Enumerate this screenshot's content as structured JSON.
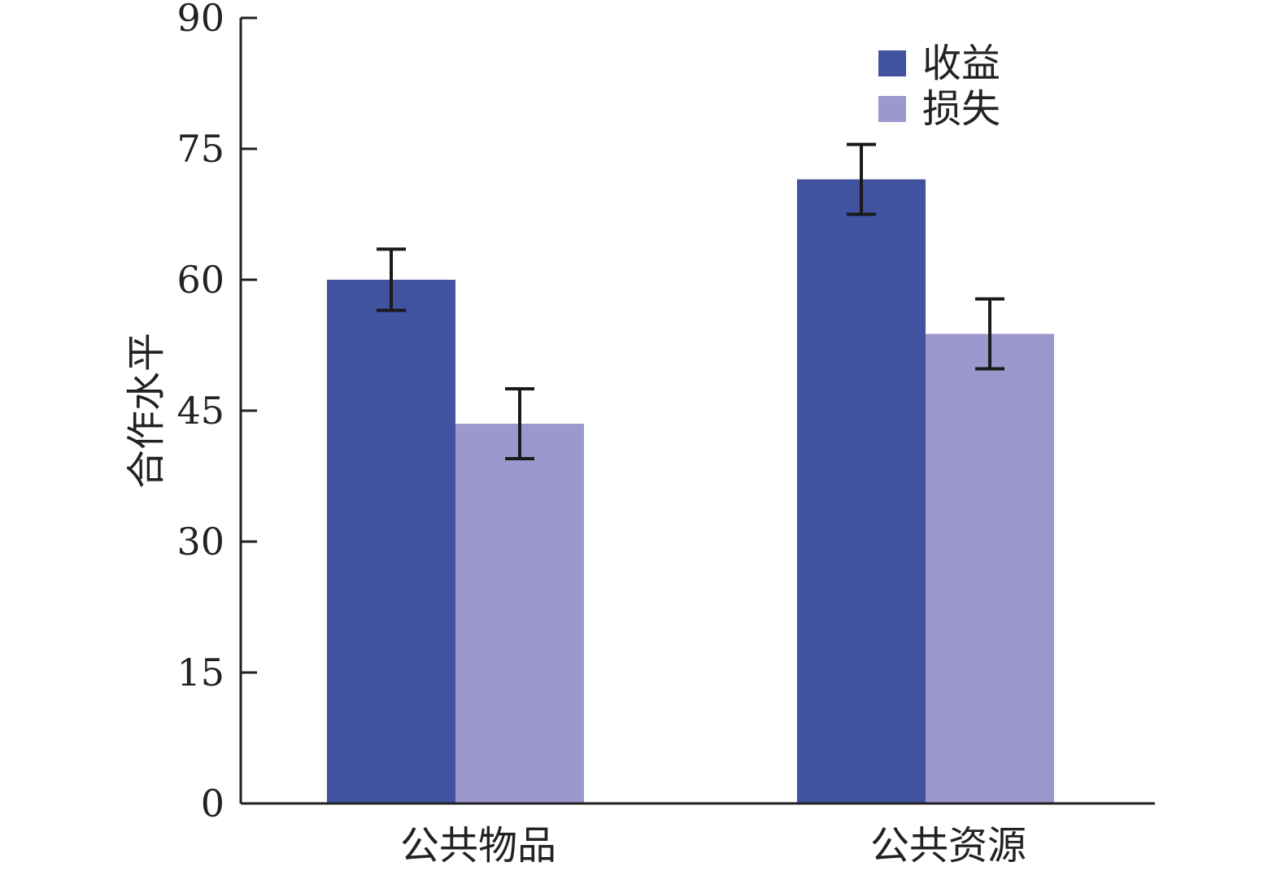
{
  "chart_data": {
    "type": "bar",
    "title": "",
    "xlabel": "",
    "ylabel": "合作水平",
    "categories": [
      "公共物品",
      "公共资源"
    ],
    "series": [
      {
        "name": "收益",
        "color": "#4152a1",
        "values": [
          60,
          71.5
        ],
        "errors": [
          3.5,
          4
        ]
      },
      {
        "name": "损失",
        "color": "#9a98cc",
        "values": [
          43.5,
          53.8
        ],
        "errors": [
          4,
          4
        ]
      }
    ],
    "ylim": [
      0,
      90
    ],
    "yticks": [
      0,
      15,
      30,
      45,
      60,
      75,
      90
    ],
    "grid": false,
    "legend_position": "top-right"
  }
}
